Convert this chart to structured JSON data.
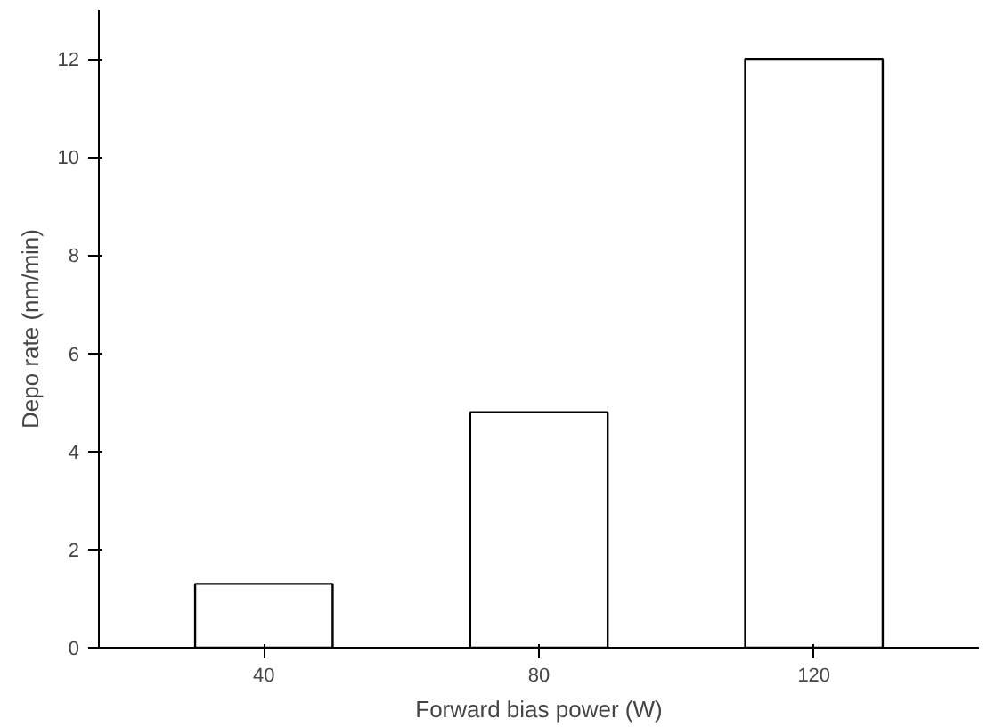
{
  "chart_data": {
    "type": "bar",
    "xlabel": "Forward bias power (W)",
    "ylabel": "Depo rate (nm/min)",
    "categories": [
      "40",
      "80",
      "120"
    ],
    "values": [
      1.3,
      4.8,
      12.0
    ],
    "color": "#ffffff",
    "ylim": [
      0,
      13
    ],
    "yticks": [
      0,
      2,
      4,
      6,
      8,
      10,
      12
    ],
    "grid": false
  }
}
